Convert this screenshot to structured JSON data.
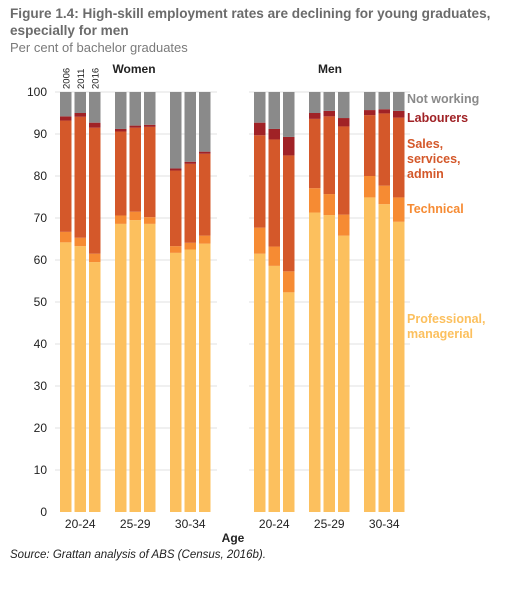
{
  "figure": {
    "title": "Figure 1.4: High-skill employment rates are declining for young graduates, especially for men",
    "subtitle": "Per cent of bachelor graduates",
    "source": "Source: Grattan analysis of ABS (Census, 2016b)."
  },
  "chart_data": {
    "type": "bar",
    "stacked": true,
    "xlabel": "Age",
    "ylabel": "",
    "ylim": [
      0,
      100
    ],
    "yticks": [
      0,
      10,
      20,
      30,
      40,
      50,
      60,
      70,
      80,
      90,
      100
    ],
    "grid": true,
    "panels": [
      "Women",
      "Men"
    ],
    "age_groups": [
      "20-24",
      "25-29",
      "30-34"
    ],
    "years": [
      "2006",
      "2011",
      "2016"
    ],
    "series": [
      {
        "name": "Professional, managerial",
        "legend": [
          "Professional,",
          "managerial"
        ],
        "color": "#fcc05e",
        "text_color": "#fcc05e"
      },
      {
        "name": "Technical",
        "legend": [
          "Technical"
        ],
        "color": "#f68b33",
        "text_color": "#f68b33"
      },
      {
        "name": "Sales, services, admin",
        "legend": [
          "Sales,",
          "services,",
          "admin"
        ],
        "color": "#d4582a",
        "text_color": "#d4582a"
      },
      {
        "name": "Labourers",
        "legend": [
          "Labourers"
        ],
        "color": "#a02226",
        "text_color": "#a02226"
      },
      {
        "name": "Not working",
        "legend": [
          "Not working"
        ],
        "color": "#8a8a8a",
        "text_color": "#8a8a8a"
      }
    ],
    "data": {
      "Women": {
        "20-24": [
          [
            64.2,
            2.5,
            26.5,
            1.0,
            5.8
          ],
          [
            63.3,
            2.0,
            28.8,
            0.9,
            5.0
          ],
          [
            59.5,
            2.0,
            30.0,
            1.2,
            7.3
          ]
        ],
        "25-29": [
          [
            68.6,
            2.0,
            20.0,
            0.6,
            8.8
          ],
          [
            69.5,
            2.0,
            20.0,
            0.5,
            8.0
          ],
          [
            68.6,
            1.6,
            21.5,
            0.5,
            7.8
          ]
        ],
        "30-34": [
          [
            61.7,
            1.6,
            18.0,
            0.5,
            18.2
          ],
          [
            62.5,
            1.6,
            18.8,
            0.5,
            16.6
          ],
          [
            63.9,
            1.9,
            19.5,
            0.5,
            14.2
          ]
        ]
      },
      "Men": {
        "20-24": [
          [
            61.5,
            6.2,
            22.0,
            3.0,
            7.3
          ],
          [
            58.6,
            4.6,
            25.5,
            2.5,
            8.8
          ],
          [
            52.3,
            5.0,
            27.6,
            4.4,
            10.7
          ]
        ],
        "25-29": [
          [
            71.3,
            5.8,
            16.5,
            1.4,
            5.0
          ],
          [
            70.7,
            5.0,
            18.5,
            1.3,
            4.5
          ],
          [
            65.8,
            5.0,
            21.0,
            2.0,
            6.2
          ]
        ],
        "30-34": [
          [
            74.9,
            5.1,
            14.5,
            1.2,
            4.3
          ],
          [
            73.3,
            4.4,
            17.2,
            1.0,
            4.1
          ],
          [
            69.1,
            5.8,
            19.0,
            1.6,
            4.5
          ]
        ]
      }
    }
  }
}
